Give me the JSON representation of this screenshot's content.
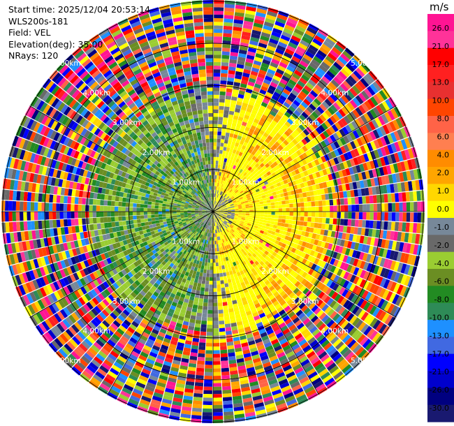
{
  "header": {
    "start_time": "Start time: 2025/12/04 20:53:14",
    "station": "WLS200s-181",
    "field": "Field: VEL",
    "elevation": "Elevation(deg): 35.00",
    "nrays": "NRays: 120"
  },
  "chart_data": {
    "type": "ppi-polar",
    "field": "VEL",
    "units": "m/s",
    "elevation_deg": 35.0,
    "n_rays": 120,
    "range_rings_km": [
      1.0,
      2.0,
      3.0,
      4.0,
      5.0
    ],
    "ring_labels": [
      "1.00km",
      "2.00km",
      "3.00km",
      "4.00km",
      "5.00km"
    ],
    "max_range_km": 5.3,
    "colorbar": {
      "unit": "m/s",
      "ticks": [
        "26.0",
        "21.0",
        "17.0",
        "13.0",
        "10.0",
        "8.0",
        "6.0",
        "4.0",
        "2.0",
        "1.0",
        "0.0",
        "-1.0",
        "-2.0",
        "-4.0",
        "-6.0",
        "-8.0",
        "-10.0",
        "-13.0",
        "-17.0",
        "-21.0",
        "-26.0",
        "-30.0"
      ],
      "colors": [
        "#ff1493",
        "#ff3399",
        "#ff0000",
        "#ff2020",
        "#e83030",
        "#ff4500",
        "#ff6347",
        "#ff7f50",
        "#ff8c00",
        "#ffa500",
        "#ffd700",
        "#ffff00",
        "#778899",
        "#696969",
        "#9acd32",
        "#6b8e23",
        "#228b22",
        "#2e8b57",
        "#1e90ff",
        "#4169e1",
        "#0000ff",
        "#0000cd",
        "#000080",
        "#191970"
      ]
    },
    "regions": {
      "inner_east": "positive velocities (yellow/orange), near radar east side",
      "inner_west": "negative velocities (greens), near radar west side",
      "outer": "noisy / mixed values beyond ~2.5 km"
    }
  }
}
